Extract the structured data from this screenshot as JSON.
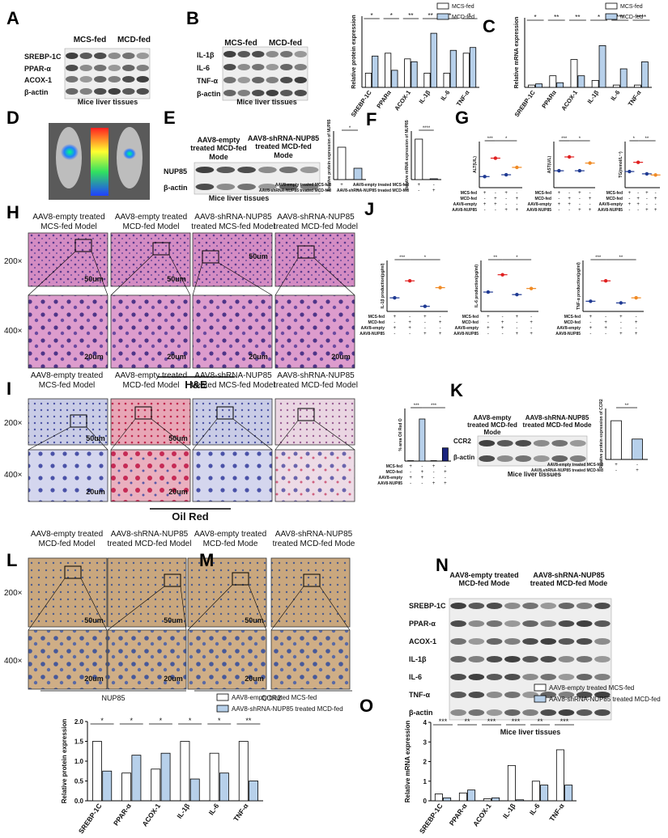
{
  "letters": [
    "A",
    "B",
    "C",
    "D",
    "E",
    "F",
    "G",
    "H",
    "J",
    "I",
    "K",
    "L",
    "M",
    "N",
    "O"
  ],
  "labels": [
    "MCS-fed",
    "MCD-fed",
    "SREBP-1C",
    "PPAR-α",
    "ACOX-1",
    "β-actin",
    "Mice liver tissues",
    "MCS-fed",
    "MCD-fed",
    "IL-1β",
    "IL-6",
    "TNF-α",
    "β-actin",
    "Mice liver tissues",
    "AAV8-empty treated MCD-fed Mode",
    "AAV8-shRNA-NUP85 treated MCD-fed Mode",
    "NUP85",
    "β-actin",
    "Mice liver tissues",
    "AAV8-empty treated MCS-fed Model",
    "AAV8-empty treated MCD-fed Model",
    "AAV8-shRNA-NUP85 treated MCS-fed Model",
    "AAV8-shRNA-NUP85 treated MCD-fed Model",
    "200×",
    "400×",
    "50um",
    "50um",
    "50um",
    "20um",
    "20um",
    "20um",
    "20um",
    "H&E",
    "AAV8-empty treated MCS-fed Model",
    "AAV8-empty treated MCD-fed Model",
    "AAV8-shRNA-NUP85 treated MCS-fed Model",
    "AAV8-shRNA-NUP85 treated MCD-fed Model",
    "200×",
    "400×",
    "50um",
    "50um",
    "20um",
    "20um",
    "Oil Red",
    "AAV8-empty treated MCD-fed Mode",
    "AAV8-shRNA-NUP85 treated MCD-fed Mode",
    "CCR2",
    "β-actin",
    "Mice liver tissues",
    "AAV8-empty treated MCD-fed Model",
    "AAV8-shRNA-NUP85 treated MCD-fed Model",
    "AAV8-empty treated MCD-fed Mode",
    "AAV8-shRNA-NUP85 treated MCD-fed Mode",
    "200×",
    "400×",
    "50um",
    "50um",
    "50um",
    "20um",
    "20um",
    "20um",
    "NUP85",
    "CCR2",
    "AAV8-empty treated MCD-fed Mode",
    "AAV8-shRNA-NUP85 treated MCD-fed Mode",
    "SREBP-1C",
    "PPAR-α",
    "ACOX-1",
    "IL-1β",
    "IL-6",
    "TNF-α",
    "β-actin",
    "Mice liver tissues"
  ],
  "chart_data": [
    {
      "type": "bar",
      "ylabel": "Relative protein expression",
      "categories": [
        "SREBP-1C",
        "PPARα",
        "ACOX-1",
        "IL-1β",
        "IL-6",
        "TNF-α"
      ],
      "series": [
        {
          "name": "MCS-fed",
          "color": "#ffffff",
          "values": [
            0.5,
            1.2,
            1.0,
            0.5,
            0.5,
            1.2
          ]
        },
        {
          "name": "MCD-fed",
          "color": "#b7d0ea",
          "values": [
            1.1,
            0.6,
            0.9,
            1.9,
            1.3,
            1.4
          ]
        }
      ],
      "ylim": [
        0,
        2.5
      ],
      "significance": [
        "*",
        "*",
        "**",
        "**",
        "*",
        "*"
      ]
    },
    {
      "type": "bar",
      "ylabel": "Relative mRNA expression",
      "categories": [
        "SREBP-1C",
        "PPARα",
        "ACOX-1",
        "IL-1β",
        "IL-6",
        "TNF-α"
      ],
      "series": [
        {
          "name": "MCS-fed",
          "color": "#ffffff",
          "values": [
            0.1,
            0.5,
            1.2,
            0.3,
            0.1,
            0.1
          ]
        },
        {
          "name": "MCD-fed",
          "color": "#b7d0ea",
          "values": [
            0.15,
            0.2,
            0.5,
            1.8,
            0.8,
            1.1
          ]
        }
      ],
      "ylim": [
        0,
        3
      ],
      "significance": [
        "*",
        "**",
        "**",
        "*",
        "***",
        "****"
      ]
    },
    {
      "type": "bar",
      "ylabel": "Relative protein expression of NUP85",
      "series": [
        {
          "colors": [
            "#ffffff",
            "#b7d0ea"
          ],
          "values": [
            1.0,
            0.35
          ]
        }
      ],
      "ylim": [
        0,
        1.5
      ],
      "significance": [
        "*"
      ],
      "conditions": [
        {
          "name": "AAV8-empty treated MCS-fed",
          "marks": [
            "+",
            "-"
          ]
        },
        {
          "name": "AAV8-shRNA-NUP85 treated MCD-fed",
          "marks": [
            "-",
            "+"
          ]
        }
      ]
    },
    {
      "type": "bar",
      "ylabel": "Relative mRNA expression of NUP85",
      "series": [
        {
          "colors": [
            "#ffffff",
            "#b7d0ea"
          ],
          "values": [
            1.0,
            0.02
          ]
        }
      ],
      "ylim": [
        0,
        1.2
      ],
      "significance": [
        "****"
      ],
      "conditions": [
        {
          "name": "AAV8-empty treated MCS-fed",
          "marks": [
            "+",
            "-"
          ]
        },
        {
          "name": "AAV8-shRNA-NUP85 treated MCD-fed",
          "marks": [
            "-",
            "+"
          ]
        }
      ]
    },
    {
      "type": "dot",
      "ylabel": "ALT(U/L)",
      "series": [
        {
          "colors": [
            "#1f3a93",
            "#e02020",
            "#1f3a93",
            "#f08a24"
          ],
          "values": [
            12,
            32,
            14,
            22
          ]
        }
      ],
      "ylim": [
        0,
        50
      ],
      "significance": [
        "***",
        "*"
      ],
      "conditions": [
        {
          "name": "MCS-fed",
          "marks": [
            "+",
            "-",
            "+",
            "-"
          ]
        },
        {
          "name": "MCD-fed",
          "marks": [
            "-",
            "+",
            "-",
            "+"
          ]
        },
        {
          "name": "AAV8-empty",
          "marks": [
            "+",
            "+",
            "-",
            "-"
          ]
        },
        {
          "name": "AAV8-NUP85",
          "marks": [
            "-",
            "-",
            "+",
            "+"
          ]
        }
      ]
    },
    {
      "type": "dot",
      "ylabel": "AST(U/L)",
      "series": [
        {
          "colors": [
            "#1f3a93",
            "#e02020",
            "#1f3a93",
            "#f08a24"
          ],
          "values": [
            22,
            40,
            22,
            32
          ]
        }
      ],
      "ylim": [
        0,
        60
      ],
      "significance": [
        "***",
        "*"
      ],
      "conditions": [
        {
          "name": "MCS-fed",
          "marks": [
            "+",
            "-",
            "+",
            "-"
          ]
        },
        {
          "name": "MCD-fed",
          "marks": [
            "-",
            "+",
            "-",
            "+"
          ]
        },
        {
          "name": "AAV8-empty",
          "marks": [
            "+",
            "+",
            "-",
            "-"
          ]
        },
        {
          "name": "AAV8-NUP85",
          "marks": [
            "-",
            "-",
            "+",
            "+"
          ]
        }
      ]
    },
    {
      "type": "dot",
      "ylabel": "TG(mmol/L⁻¹)",
      "series": [
        {
          "colors": [
            "#1f3a93",
            "#e02020",
            "#1f3a93",
            "#f08a24"
          ],
          "values": [
            0.7,
            1.1,
            0.6,
            0.55
          ]
        }
      ],
      "ylim": [
        0,
        2
      ],
      "significance": [
        "*",
        "**"
      ],
      "conditions": [
        {
          "name": "MCS-fed",
          "marks": [
            "+",
            "-",
            "+",
            "-"
          ]
        },
        {
          "name": "MCD-fed",
          "marks": [
            "-",
            "+",
            "-",
            "+"
          ]
        },
        {
          "name": "AAV8-empty",
          "marks": [
            "+",
            "+",
            "-",
            "-"
          ]
        },
        {
          "name": "AAV8-NUP85",
          "marks": [
            "-",
            "-",
            "+",
            "+"
          ]
        }
      ]
    },
    {
      "type": "dot",
      "ylabel": "IL-1β production(pg/ml)",
      "series": [
        {
          "colors": [
            "#1f3a93",
            "#e02020",
            "#1f3a93",
            "#f08a24"
          ],
          "values": [
            40,
            90,
            15,
            70
          ]
        }
      ],
      "ylim": [
        0,
        150
      ],
      "significance": [
        "***",
        "*"
      ],
      "conditions": [
        {
          "name": "MCS-fed",
          "marks": [
            "+",
            "-",
            "+",
            "-"
          ]
        },
        {
          "name": "MCD-fed",
          "marks": [
            "-",
            "+",
            "-",
            "+"
          ]
        },
        {
          "name": "AAV8-empty",
          "marks": [
            "+",
            "+",
            "-",
            "-"
          ]
        },
        {
          "name": "AAV8-NUP85",
          "marks": [
            "-",
            "-",
            "+",
            "+"
          ]
        }
      ]
    },
    {
      "type": "dot",
      "ylabel": "IL-6 production(pg/ml)",
      "series": [
        {
          "colors": [
            "#1f3a93",
            "#e02020",
            "#1f3a93",
            "#f08a24"
          ],
          "values": [
            38,
            72,
            33,
            45
          ]
        }
      ],
      "ylim": [
        0,
        100
      ],
      "significance": [
        "**",
        "*"
      ],
      "conditions": [
        {
          "name": "MCS-fed",
          "marks": [
            "+",
            "-",
            "+",
            "-"
          ]
        },
        {
          "name": "MCD-fed",
          "marks": [
            "-",
            "+",
            "-",
            "+"
          ]
        },
        {
          "name": "AAV8-empty",
          "marks": [
            "+",
            "+",
            "-",
            "-"
          ]
        },
        {
          "name": "AAV8-NUP85",
          "marks": [
            "-",
            "-",
            "+",
            "+"
          ]
        }
      ]
    },
    {
      "type": "dot",
      "ylabel": "TNF-α production(pg/ml)",
      "series": [
        {
          "colors": [
            "#1f3a93",
            "#e02020",
            "#1f3a93",
            "#f08a24"
          ],
          "values": [
            60,
            180,
            50,
            80
          ]
        }
      ],
      "ylim": [
        0,
        300
      ],
      "significance": [
        "***",
        "**"
      ],
      "conditions": [
        {
          "name": "MCS-fed",
          "marks": [
            "+",
            "-",
            "+",
            "-"
          ]
        },
        {
          "name": "MCD-fed",
          "marks": [
            "-",
            "+",
            "-",
            "+"
          ]
        },
        {
          "name": "AAV8-empty",
          "marks": [
            "+",
            "+",
            "-",
            "-"
          ]
        },
        {
          "name": "AAV8-NUP85",
          "marks": [
            "-",
            "-",
            "+",
            "+"
          ]
        }
      ]
    },
    {
      "type": "bar",
      "ylabel": "% area Oil Red O",
      "series": [
        {
          "colors": [
            "#ffffff",
            "#b7d0ea",
            "#ffffff",
            "#1a237e"
          ],
          "values": [
            0.3,
            32,
            0.3,
            10
          ]
        }
      ],
      "ylim": [
        0,
        40
      ],
      "significance": [
        "***",
        "***"
      ],
      "conditions": [
        {
          "name": "MCS-fed",
          "marks": [
            "+",
            "-",
            "+",
            "-"
          ]
        },
        {
          "name": "MCD-fed",
          "marks": [
            "-",
            "+",
            "-",
            "+"
          ]
        },
        {
          "name": "AAV8-empty",
          "marks": [
            "+",
            "+",
            "-",
            "-"
          ]
        },
        {
          "name": "AAV8-NUP85",
          "marks": [
            "-",
            "-",
            "+",
            "+"
          ]
        }
      ]
    },
    {
      "type": "bar",
      "ylabel": "Relative protein expression of CCR2",
      "series": [
        {
          "colors": [
            "#ffffff",
            "#b7d0ea"
          ],
          "values": [
            1.9,
            1.0
          ]
        }
      ],
      "ylim": [
        0,
        2.5
      ],
      "significance": [
        "**"
      ],
      "conditions": [
        {
          "name": "AAV8-empty treated MCS-fed",
          "marks": [
            "+",
            "-"
          ]
        },
        {
          "name": "AAV8-shRNA-NUP85 treated MCD-fed",
          "marks": [
            "-",
            "+"
          ]
        }
      ]
    },
    {
      "type": "bar",
      "ylabel": "Relative protein expression",
      "categories": [
        "SREBP-1C",
        "PPAR-α",
        "ACOX-1",
        "IL-1β",
        "IL-6",
        "TNF-α"
      ],
      "series": [
        {
          "name": "AAV8-empty treated MCS-fed",
          "color": "#ffffff",
          "values": [
            1.5,
            0.7,
            0.8,
            1.5,
            1.2,
            1.5
          ]
        },
        {
          "name": "AAV8-shRNA-NUP85 treated MCD-fed",
          "color": "#b7d0ea",
          "values": [
            0.75,
            1.15,
            1.2,
            0.55,
            0.7,
            0.5
          ]
        }
      ],
      "ylim": [
        0,
        2
      ],
      "yticks": [
        {
          "value": 0,
          "label": "0.0"
        },
        0.5,
        {
          "value": 1,
          "label": "1.0"
        },
        1.5,
        {
          "value": 2,
          "label": "2.0"
        }
      ],
      "significance": [
        "*",
        "*",
        "*",
        "*",
        "*",
        "**"
      ]
    },
    {
      "type": "bar",
      "ylabel": "Relative mRNA expression",
      "categories": [
        "SREBP-1C",
        "PPAR-α",
        "ACOX-1",
        "IL-1β",
        "IL-6",
        "TNF-α"
      ],
      "series": [
        {
          "name": "AAV8-empty treated MCS-fed",
          "color": "#ffffff",
          "values": [
            0.35,
            0.4,
            0.1,
            1.8,
            1.0,
            2.6
          ]
        },
        {
          "name": "AAV8-shRNA-NUP85 treated MCD-fed",
          "color": "#b7d0ea",
          "values": [
            0.15,
            0.55,
            0.15,
            0.05,
            0.8,
            0.8
          ]
        }
      ],
      "ylim": [
        0,
        4
      ],
      "yticks": [
        0,
        1,
        2,
        3,
        4
      ],
      "significance": [
        "***",
        "**",
        "***",
        "***",
        "**",
        "***"
      ]
    }
  ]
}
